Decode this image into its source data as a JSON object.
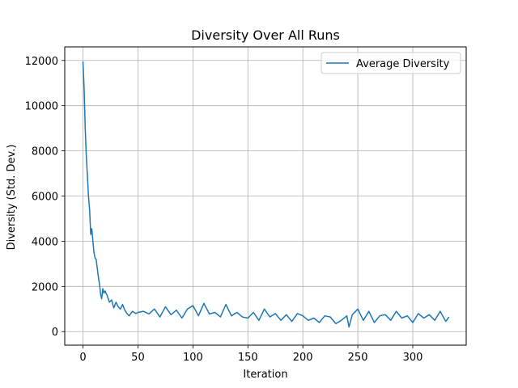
{
  "chart_data": {
    "type": "line",
    "title": "Diversity Over All Runs",
    "xlabel": "Iteration",
    "ylabel": "Diversity (Std. Dev.)",
    "xlim": [
      -16.6,
      348.6
    ],
    "ylim": [
      -600,
      12600
    ],
    "xticks": [
      0,
      50,
      100,
      150,
      200,
      250,
      300
    ],
    "yticks": [
      0,
      2000,
      4000,
      6000,
      8000,
      10000,
      12000
    ],
    "grid": true,
    "legend": {
      "position": "top-right",
      "entries": [
        "Average Diversity"
      ]
    },
    "colors": {
      "line": "#1f77b4",
      "grid": "#b0b0b0",
      "axes": "#000000"
    },
    "series": [
      {
        "name": "Average Diversity",
        "x": [
          0,
          1,
          2,
          3,
          4,
          5,
          6,
          7,
          8,
          9,
          10,
          11,
          12,
          13,
          14,
          15,
          16,
          17,
          18,
          19,
          20,
          22,
          24,
          26,
          28,
          30,
          32,
          34,
          36,
          38,
          40,
          42,
          45,
          48,
          50,
          55,
          60,
          65,
          70,
          75,
          80,
          85,
          90,
          95,
          100,
          105,
          110,
          115,
          120,
          125,
          130,
          135,
          140,
          145,
          150,
          155,
          160,
          165,
          170,
          175,
          180,
          185,
          190,
          195,
          200,
          205,
          210,
          215,
          220,
          225,
          230,
          235,
          240,
          242,
          245,
          250,
          255,
          260,
          265,
          270,
          275,
          280,
          285,
          290,
          295,
          300,
          305,
          310,
          315,
          320,
          325,
          330,
          333
        ],
        "y": [
          11950,
          10800,
          9000,
          7800,
          6900,
          6000,
          5400,
          4300,
          4550,
          4000,
          3500,
          3250,
          3200,
          2800,
          2400,
          2100,
          1650,
          1450,
          1900,
          1700,
          1800,
          1600,
          1300,
          1400,
          1050,
          1300,
          1100,
          1000,
          1200,
          950,
          800,
          700,
          900,
          800,
          850,
          900,
          780,
          1000,
          650,
          1100,
          750,
          950,
          600,
          1000,
          1150,
          700,
          1250,
          780,
          850,
          650,
          1200,
          700,
          850,
          650,
          600,
          850,
          500,
          1000,
          650,
          800,
          500,
          750,
          450,
          800,
          700,
          500,
          600,
          400,
          700,
          650,
          350,
          500,
          700,
          200,
          750,
          1000,
          500,
          900,
          400,
          700,
          750,
          500,
          900,
          600,
          700,
          400,
          800,
          600,
          750,
          500,
          900,
          450,
          650
        ]
      }
    ]
  }
}
